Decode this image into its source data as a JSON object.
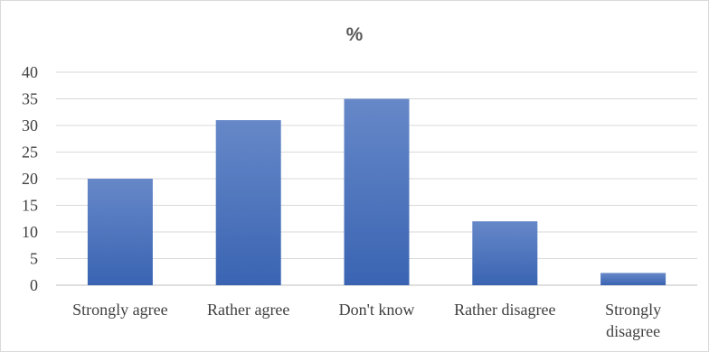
{
  "chart_data": {
    "type": "bar",
    "title": "%",
    "categories": [
      "Strongly agree",
      "Rather agree",
      "Don't know",
      "Rather disagree",
      "Strongly disagree"
    ],
    "category_lines": [
      [
        "Strongly agree"
      ],
      [
        "Rather agree"
      ],
      [
        "Don't know"
      ],
      [
        "Rather disagree"
      ],
      [
        "Strongly",
        "disagree"
      ]
    ],
    "values": [
      20,
      31,
      35,
      12,
      2.3
    ],
    "ylim": [
      0,
      40
    ],
    "yticks": [
      0,
      5,
      10,
      15,
      20,
      25,
      30,
      35,
      40
    ],
    "xlabel": "",
    "ylabel": "",
    "grid": true,
    "legend": "none",
    "colors": {
      "bar_top": "#6688c8",
      "bar_bottom": "#3a64b2",
      "grid": "#d9d9d9",
      "axis": "#bfbfbf",
      "text": "#404040"
    }
  }
}
